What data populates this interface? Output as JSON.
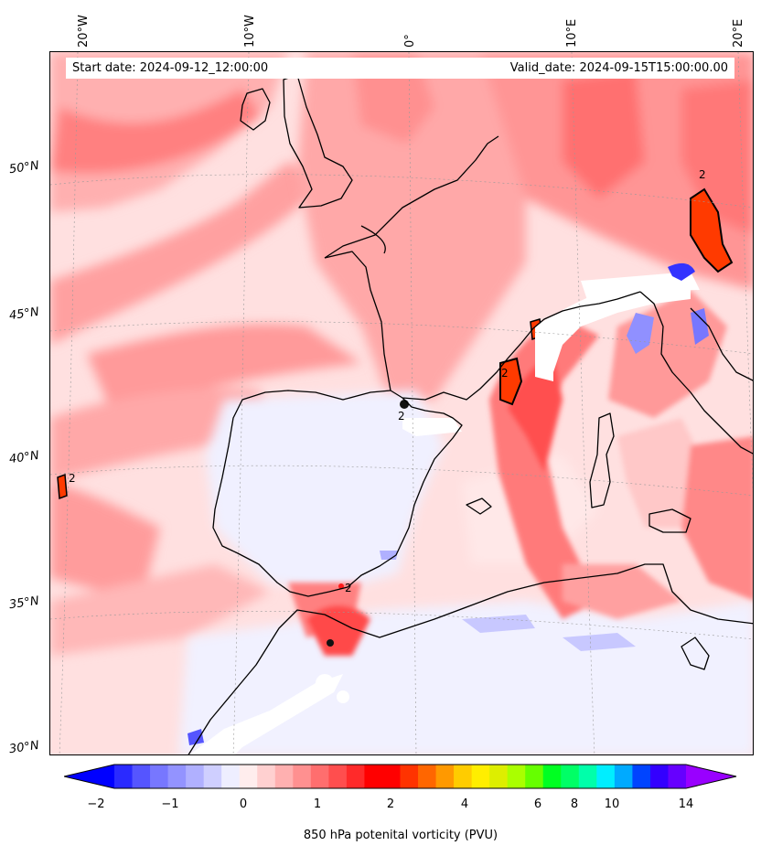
{
  "header": {
    "start_date": "Start date: 2024-09-12_12:00:00",
    "valid_date": "Valid_date: 2024-09-15T15:00:00.00"
  },
  "axes": {
    "lon_ticks": [
      "20°W",
      "10°W",
      "0°",
      "10°E",
      "20°E"
    ],
    "lat_ticks": [
      "50°N",
      "45°N",
      "40°N",
      "35°N",
      "30°N"
    ]
  },
  "contour_labels": [
    "2",
    "2",
    "2",
    "2",
    "2"
  ],
  "colorbar": {
    "label": "850 hPa potenital vorticity (PVU)",
    "tick_labels": [
      "−2",
      "−1",
      "0",
      "1",
      "2",
      "4",
      "6",
      "8",
      "10",
      "14"
    ],
    "colors": [
      "#0000ff",
      "#2a2aff",
      "#5555ff",
      "#7777ff",
      "#9393ff",
      "#b0b0ff",
      "#cfcfff",
      "#eeeeff",
      "#ffeded",
      "#ffd0d0",
      "#ffb0b0",
      "#ff9090",
      "#ff6e6e",
      "#ff4e4e",
      "#ff2a2a",
      "#ff0000",
      "#ff0000",
      "#ff3300",
      "#ff6600",
      "#ff9900",
      "#ffcc00",
      "#ffee00",
      "#ddee00",
      "#aaff00",
      "#66ff00",
      "#00ff22",
      "#00ff66",
      "#00ffaa",
      "#00eeff",
      "#00aaff",
      "#0044ff",
      "#3300ff",
      "#6600ff",
      "#9900ff"
    ]
  }
}
